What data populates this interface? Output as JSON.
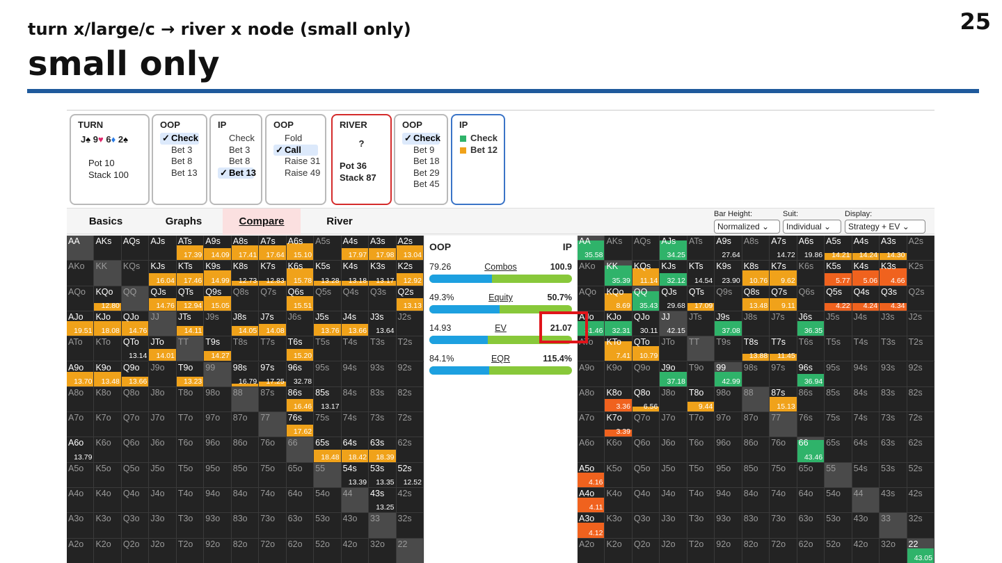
{
  "slide": {
    "number": "25",
    "subtitle": "turn x/large/c → river x node (small only)",
    "title": "small only"
  },
  "colors": {
    "check": "#2fb36a",
    "bet": "#f0a21a",
    "raise": "#f0621e",
    "oop_bar": "#1da0e0",
    "ip_bar": "#88c83a",
    "highlight": "#e0141a"
  },
  "nodes": {
    "turn": {
      "header": "TURN",
      "cards": [
        "J",
        "♠",
        "9",
        "♥",
        "6",
        "♦",
        "2",
        "♠"
      ],
      "pot": "Pot 10",
      "stack": "Stack 100"
    },
    "oop1": {
      "header": "OOP",
      "options": [
        {
          "label": "Check",
          "selected": true
        },
        {
          "label": "Bet 3"
        },
        {
          "label": "Bet 8"
        },
        {
          "label": "Bet 13"
        }
      ]
    },
    "ip1": {
      "header": "IP",
      "options": [
        {
          "label": "Check"
        },
        {
          "label": "Bet 3"
        },
        {
          "label": "Bet 8"
        },
        {
          "label": "Bet 13",
          "selected": true
        }
      ]
    },
    "oop2": {
      "header": "OOP",
      "options": [
        {
          "label": "Fold"
        },
        {
          "label": "Call",
          "selected": true
        },
        {
          "label": "Raise 31"
        },
        {
          "label": "Raise 49"
        }
      ]
    },
    "river": {
      "header": "RIVER",
      "card": "?",
      "pot": "Pot 36",
      "stack": "Stack 87"
    },
    "oop3": {
      "header": "OOP",
      "options": [
        {
          "label": "Check",
          "selected": true
        },
        {
          "label": "Bet 9"
        },
        {
          "label": "Bet 18"
        },
        {
          "label": "Bet 29"
        },
        {
          "label": "Bet 45"
        }
      ]
    },
    "ip2": {
      "header": "IP",
      "options": [
        {
          "label": "Check",
          "icon": "green-square-icon"
        },
        {
          "label": "Bet 12",
          "icon": "orange-square-icon"
        }
      ]
    }
  },
  "tabs": [
    "Basics",
    "Graphs",
    "Compare",
    "River"
  ],
  "active_tab": "Compare",
  "controls": {
    "bar_height": {
      "label": "Bar Height:",
      "value": "Normalized"
    },
    "suit": {
      "label": "Suit:",
      "value": "Individual"
    },
    "display": {
      "label": "Display:",
      "value": "Strategy + EV"
    }
  },
  "compare": {
    "oop_label": "OOP",
    "ip_label": "IP",
    "rows": [
      {
        "name": "Combos",
        "oop": "79.26",
        "ip": "100.9",
        "oop_share": 0.44
      },
      {
        "name": "Equity",
        "oop": "49.3%",
        "ip": "50.7%",
        "oop_share": 0.493
      },
      {
        "name": "EV",
        "oop": "14.93",
        "ip": "21.07",
        "oop_share": 0.41
      },
      {
        "name": "EQR",
        "oop": "84.1%",
        "ip": "115.4%",
        "oop_share": 0.42
      }
    ]
  },
  "oop_grid": {
    "AA": {},
    "AKs": {},
    "AQs": {},
    "AJs": {},
    "ATs": {
      "ev": "17.39",
      "b": 0.6
    },
    "A9s": {
      "ev": "14.09",
      "b": 0.5
    },
    "A8s": {
      "ev": "17.41",
      "b": 0.6
    },
    "A7s": {
      "ev": "17.64",
      "b": 0.6
    },
    "A6s": {
      "ev": "15.10",
      "b": 0.7
    },
    "A4s": {
      "ev": "17.97",
      "b": 0.5
    },
    "A3s": {
      "ev": "17.98",
      "b": 0.5
    },
    "A2s": {
      "ev": "13.04",
      "b": 0.6
    },
    "KJs": {
      "ev": "16.04",
      "b": 0.5
    },
    "KTs": {
      "ev": "17.46",
      "b": 0.5
    },
    "K9s": {
      "ev": "14.99",
      "b": 0.6
    },
    "K8s": {
      "ev": "12.73",
      "b": 0.2
    },
    "K7s": {
      "ev": "12.83",
      "b": 0.2
    },
    "K6s": {
      "ev": "15.78",
      "b": 0.7
    },
    "K5s": {
      "ev": "13.28",
      "b": 0.2
    },
    "K4s": {
      "ev": "13.18",
      "b": 0.2
    },
    "K3s": {
      "ev": "13.17",
      "b": 0.2
    },
    "K2s": {
      "ev": "12.92",
      "b": 0.5
    },
    "KQo": {
      "ev": "12.80",
      "b": 0.3
    },
    "QJs": {
      "ev": "14.76",
      "b": 0.5
    },
    "QTs": {
      "ev": "12.94",
      "b": 0.4
    },
    "Q9s": {
      "ev": "15.05",
      "b": 0.6
    },
    "Q6s": {
      "ev": "15.51",
      "b": 0.6
    },
    "Q2s": {
      "ev": "13.13",
      "b": 0.5
    },
    "AJo": {
      "ev": "19.51",
      "b": 0.6
    },
    "KJo": {
      "ev": "18.08",
      "b": 0.6
    },
    "QJo": {
      "ev": "14.76",
      "b": 0.6
    },
    "JTs": {
      "ev": "14.11",
      "b": 0.4
    },
    "J8s": {
      "ev": "14.05",
      "b": 0.4
    },
    "J7s": {
      "ev": "14.08",
      "b": 0.5
    },
    "J5s": {
      "ev": "13.76",
      "b": 0.5
    },
    "J4s": {
      "ev": "13.66",
      "b": 0.5
    },
    "J3s": {
      "ev": "13.64",
      "b": 0
    },
    "QTo": {
      "ev": "13.14",
      "b": 0
    },
    "JTo": {
      "ev": "14.01",
      "b": 0.5
    },
    "T9s": {
      "ev": "14.27",
      "b": 0.4
    },
    "T6s": {
      "ev": "15.20",
      "b": 0.5
    },
    "A9o": {
      "ev": "13.70",
      "b": 0.6
    },
    "K9o": {
      "ev": "13.48",
      "b": 0.6
    },
    "Q9o": {
      "ev": "13.66",
      "b": 0.4
    },
    "T9o": {
      "ev": "13.23",
      "b": 0.4
    },
    "98s": {
      "ev": "16.79",
      "b": 0.1
    },
    "97s": {
      "ev": "17.25",
      "b": 0.2
    },
    "96s": {
      "ev": "32.78",
      "b": 0
    },
    "86s": {
      "ev": "16.46",
      "b": 0.5
    },
    "85s": {
      "ev": "13.17",
      "b": 0
    },
    "76s": {
      "ev": "17.62",
      "b": 0.5
    },
    "A6o": {
      "ev": "13.79",
      "b": 0
    },
    "65s": {
      "ev": "18.48",
      "b": 0.5
    },
    "64s": {
      "ev": "18.42",
      "b": 0.5
    },
    "63s": {
      "ev": "18.39",
      "b": 0.5
    },
    "54s": {
      "ev": "13.39",
      "b": 0
    },
    "53s": {
      "ev": "13.35",
      "b": 0
    },
    "52s": {
      "ev": "12.52",
      "b": 0
    },
    "43s": {
      "ev": "13.25",
      "b": 0
    }
  },
  "ip_grid": {
    "AA": {
      "ev": "35.58",
      "g": 0.8
    },
    "AJs": {
      "ev": "34.25",
      "g": 0.8
    },
    "A9s": {
      "ev": "27.64"
    },
    "A7s": {
      "ev": "14.72"
    },
    "A6s": {
      "ev": "19.86"
    },
    "A5s": {
      "ev": "14.21",
      "o": 0.3
    },
    "A4s": {
      "ev": "14.24",
      "o": 0.3
    },
    "A3s": {
      "ev": "14.30",
      "o": 0.3
    },
    "KK": {
      "ev": "35.39",
      "g": 0.8
    },
    "KQs": {
      "ev": "11.14",
      "o": 0.7
    },
    "KJs": {
      "ev": "32.12",
      "g": 0.5
    },
    "KTs": {
      "ev": "14.54"
    },
    "K9s": {
      "ev": "23.90"
    },
    "K8s": {
      "ev": "10.76",
      "o": 0.6
    },
    "K7s": {
      "ev": "9.62",
      "o": 0.6
    },
    "K5s": {
      "ev": "5.77",
      "r": 0.5
    },
    "K4s": {
      "ev": "5.06",
      "r": 0.6
    },
    "K3s": {
      "ev": "4.66",
      "r": 0.7
    },
    "KQo": {
      "ev": "8.69",
      "o": 0.7
    },
    "QQ": {
      "ev": "35.43",
      "g": 0.8
    },
    "QJs": {
      "ev": "29.68"
    },
    "QTs": {
      "ev": "17.09",
      "o": 0.3
    },
    "Q8s": {
      "ev": "13.48",
      "o": 0.5
    },
    "Q7s": {
      "ev": "9.11",
      "o": 0.5
    },
    "Q5s": {
      "ev": "4.22",
      "r": 0.3
    },
    "Q4s": {
      "ev": "4.24",
      "r": 0.3
    },
    "Q3s": {
      "ev": "4.34",
      "r": 0.3
    },
    "AJo": {
      "ev": "31.46",
      "g": 0.6
    },
    "KJo": {
      "ev": "32.31",
      "g": 0.6
    },
    "QJo": {
      "ev": "30.11"
    },
    "JJ": {
      "ev": "42.15"
    },
    "J9s": {
      "ev": "37.08",
      "g": 0.6
    },
    "J6s": {
      "ev": "36.35",
      "g": 0.6
    },
    "KTo": {
      "ev": "7.41",
      "o": 0.8
    },
    "QTo": {
      "ev": "10.79",
      "o": 0.6
    },
    "T8s": {
      "ev": "13.88",
      "o": 0.3
    },
    "T7s": {
      "ev": "11.45",
      "o": 0.3
    },
    "J9o": {
      "ev": "37.18",
      "g": 0.6
    },
    "99": {
      "ev": "42.99",
      "g": 0.6
    },
    "96s": {
      "ev": "36.94",
      "g": 0.5
    },
    "K8o": {
      "ev": "3.36",
      "r": 0.5
    },
    "Q8o": {
      "ev": "6.56",
      "o": 0.2
    },
    "T8o": {
      "ev": "9.44",
      "o": 0.4
    },
    "87s": {
      "ev": "15.13",
      "o": 0.6
    },
    "K7o": {
      "ev": "3.39",
      "r": 0.3
    },
    "66": {
      "ev": "43.46",
      "g": 0.9
    },
    "A5o": {
      "ev": "4.16",
      "r": 0.6
    },
    "A4o": {
      "ev": "4.11",
      "r": 0.6
    },
    "A3o": {
      "ev": "4.12",
      "r": 0.6
    },
    "22": {
      "ev": "43.05",
      "g": 0.6
    }
  }
}
